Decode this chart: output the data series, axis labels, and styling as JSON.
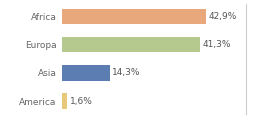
{
  "categories": [
    "Africa",
    "Europa",
    "Asia",
    "America"
  ],
  "values": [
    42.9,
    41.3,
    14.3,
    1.6
  ],
  "labels": [
    "42,9%",
    "41,3%",
    "14,3%",
    "1,6%"
  ],
  "bar_colors": [
    "#e8a87c",
    "#b5c98e",
    "#5b7db1",
    "#e8c97c"
  ],
  "background_color": "#ffffff",
  "xlim": [
    0,
    55
  ],
  "label_fontsize": 6.5,
  "tick_fontsize": 6.5,
  "bar_height": 0.55,
  "right_spine_color": "#cccccc"
}
